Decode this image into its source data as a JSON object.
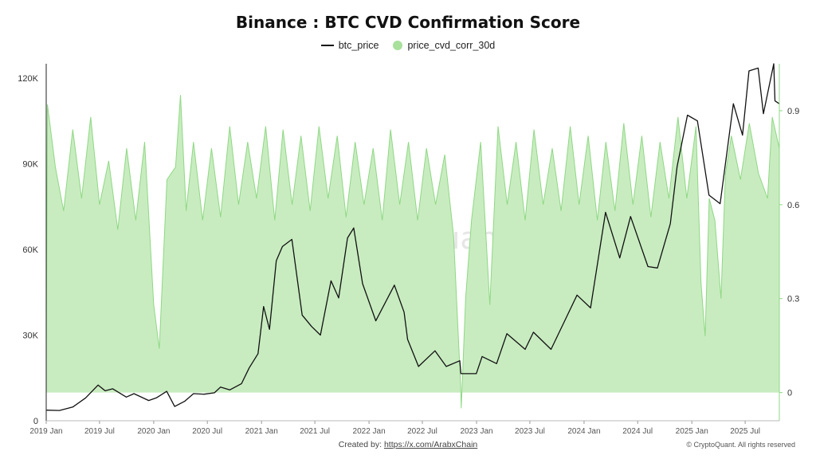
{
  "title": "Binance : BTC CVD Confirmation Score",
  "legend": {
    "series1": "btc_price",
    "series2": "price_cvd_corr_30d"
  },
  "colors": {
    "price_line": "#111111",
    "corr_fill": "#c8ecc0",
    "corr_stroke": "#8fd884",
    "legend_dot": "#a8e09c"
  },
  "watermark": "CryptoQuant",
  "footer": {
    "created_by_label": "Created by:",
    "created_by_link": "https://x.com/ArabxChain",
    "copyright": "© CryptoQuant. All rights reserved"
  },
  "chart_data": {
    "type": "line",
    "title": "Binance : BTC CVD Confirmation Score",
    "x_ticks": [
      "2019 Jan",
      "2019 Jul",
      "2020 Jan",
      "2020 Jul",
      "2021 Jan",
      "2021 Jul",
      "2022 Jan",
      "2022 Jul",
      "2023 Jan",
      "2023 Jul",
      "2024 Jan",
      "2024 Jul",
      "2025 Jan",
      "2025 Jul"
    ],
    "y_left": {
      "ticks": [
        "0",
        "30K",
        "60K",
        "90K",
        "120K"
      ],
      "range": [
        0,
        125000
      ]
    },
    "y_right": {
      "ticks": [
        "0",
        "0.3",
        "0.6",
        "0.9"
      ],
      "range": [
        -0.09,
        1.05
      ]
    },
    "x_range": [
      "2019-01-01",
      "2025-10-25"
    ],
    "series": [
      {
        "name": "btc_price",
        "axis": "left",
        "style": "line",
        "points": [
          [
            "2019-01-01",
            3700
          ],
          [
            "2019-02-15",
            3600
          ],
          [
            "2019-04-01",
            4800
          ],
          [
            "2019-05-15",
            8000
          ],
          [
            "2019-06-26",
            12500
          ],
          [
            "2019-07-20",
            10500
          ],
          [
            "2019-08-15",
            11200
          ],
          [
            "2019-09-30",
            8300
          ],
          [
            "2019-10-26",
            9500
          ],
          [
            "2019-12-15",
            7100
          ],
          [
            "2020-01-10",
            8000
          ],
          [
            "2020-02-14",
            10300
          ],
          [
            "2020-03-12",
            5000
          ],
          [
            "2020-04-15",
            6800
          ],
          [
            "2020-05-15",
            9500
          ],
          [
            "2020-06-20",
            9300
          ],
          [
            "2020-07-25",
            9800
          ],
          [
            "2020-08-15",
            11800
          ],
          [
            "2020-09-15",
            10800
          ],
          [
            "2020-10-25",
            13000
          ],
          [
            "2020-11-20",
            18500
          ],
          [
            "2020-12-20",
            23500
          ],
          [
            "2021-01-08",
            40000
          ],
          [
            "2021-01-28",
            32000
          ],
          [
            "2021-02-20",
            56000
          ],
          [
            "2021-03-13",
            61000
          ],
          [
            "2021-04-14",
            63500
          ],
          [
            "2021-05-19",
            37000
          ],
          [
            "2021-06-20",
            33000
          ],
          [
            "2021-07-20",
            30000
          ],
          [
            "2021-08-25",
            49000
          ],
          [
            "2021-09-20",
            43000
          ],
          [
            "2021-10-20",
            64000
          ],
          [
            "2021-11-10",
            67500
          ],
          [
            "2021-12-10",
            48000
          ],
          [
            "2022-01-24",
            35000
          ],
          [
            "2022-03-28",
            47500
          ],
          [
            "2022-04-30",
            38000
          ],
          [
            "2022-05-12",
            28500
          ],
          [
            "2022-06-18",
            19000
          ],
          [
            "2022-08-13",
            24500
          ],
          [
            "2022-09-20",
            19000
          ],
          [
            "2022-11-05",
            21000
          ],
          [
            "2022-11-09",
            16500
          ],
          [
            "2022-12-31",
            16500
          ],
          [
            "2023-01-20",
            22500
          ],
          [
            "2023-03-10",
            20000
          ],
          [
            "2023-04-14",
            30500
          ],
          [
            "2023-06-15",
            25000
          ],
          [
            "2023-07-13",
            31000
          ],
          [
            "2023-09-11",
            25000
          ],
          [
            "2023-10-25",
            34500
          ],
          [
            "2023-12-08",
            44000
          ],
          [
            "2024-01-23",
            39500
          ],
          [
            "2024-03-14",
            73000
          ],
          [
            "2024-05-01",
            57000
          ],
          [
            "2024-06-07",
            71500
          ],
          [
            "2024-08-05",
            54000
          ],
          [
            "2024-09-06",
            53500
          ],
          [
            "2024-10-20",
            69000
          ],
          [
            "2024-11-12",
            89000
          ],
          [
            "2024-12-17",
            107000
          ],
          [
            "2025-01-20",
            105000
          ],
          [
            "2025-02-28",
            79000
          ],
          [
            "2025-04-07",
            76000
          ],
          [
            "2025-05-22",
            111000
          ],
          [
            "2025-06-22",
            100000
          ],
          [
            "2025-07-14",
            122500
          ],
          [
            "2025-08-14",
            123500
          ],
          [
            "2025-09-01",
            107500
          ],
          [
            "2025-10-06",
            125000
          ],
          [
            "2025-10-10",
            112000
          ],
          [
            "2025-10-25",
            111000
          ]
        ]
      },
      {
        "name": "price_cvd_corr_30d",
        "axis": "right",
        "style": "area",
        "points": [
          [
            "2019-01-01",
            0.1
          ],
          [
            "2019-01-05",
            0.92
          ],
          [
            "2019-02-01",
            0.72
          ],
          [
            "2019-03-01",
            0.58
          ],
          [
            "2019-04-01",
            0.84
          ],
          [
            "2019-05-01",
            0.62
          ],
          [
            "2019-06-01",
            0.88
          ],
          [
            "2019-07-01",
            0.6
          ],
          [
            "2019-08-01",
            0.74
          ],
          [
            "2019-09-01",
            0.52
          ],
          [
            "2019-10-01",
            0.78
          ],
          [
            "2019-11-01",
            0.55
          ],
          [
            "2019-12-01",
            0.8
          ],
          [
            "2020-01-01",
            0.28
          ],
          [
            "2020-01-20",
            0.14
          ],
          [
            "2020-02-15",
            0.68
          ],
          [
            "2020-03-15",
            0.72
          ],
          [
            "2020-04-01",
            0.95
          ],
          [
            "2020-04-20",
            0.58
          ],
          [
            "2020-05-15",
            0.8
          ],
          [
            "2020-06-15",
            0.55
          ],
          [
            "2020-07-15",
            0.78
          ],
          [
            "2020-08-15",
            0.56
          ],
          [
            "2020-09-15",
            0.85
          ],
          [
            "2020-10-15",
            0.6
          ],
          [
            "2020-11-15",
            0.8
          ],
          [
            "2020-12-15",
            0.62
          ],
          [
            "2021-01-15",
            0.85
          ],
          [
            "2021-02-15",
            0.55
          ],
          [
            "2021-03-15",
            0.84
          ],
          [
            "2021-04-15",
            0.6
          ],
          [
            "2021-05-15",
            0.82
          ],
          [
            "2021-06-15",
            0.58
          ],
          [
            "2021-07-15",
            0.85
          ],
          [
            "2021-08-15",
            0.62
          ],
          [
            "2021-09-15",
            0.82
          ],
          [
            "2021-10-15",
            0.56
          ],
          [
            "2021-11-15",
            0.8
          ],
          [
            "2021-12-15",
            0.6
          ],
          [
            "2022-01-15",
            0.78
          ],
          [
            "2022-02-15",
            0.55
          ],
          [
            "2022-03-15",
            0.84
          ],
          [
            "2022-04-15",
            0.6
          ],
          [
            "2022-05-15",
            0.8
          ],
          [
            "2022-06-15",
            0.55
          ],
          [
            "2022-07-15",
            0.78
          ],
          [
            "2022-08-15",
            0.6
          ],
          [
            "2022-09-15",
            0.76
          ],
          [
            "2022-10-15",
            0.5
          ],
          [
            "2022-11-08",
            0.02
          ],
          [
            "2022-11-10",
            -0.05
          ],
          [
            "2022-11-25",
            0.3
          ],
          [
            "2022-12-15",
            0.55
          ],
          [
            "2023-01-15",
            0.8
          ],
          [
            "2023-02-15",
            0.28
          ],
          [
            "2023-03-15",
            0.85
          ],
          [
            "2023-04-15",
            0.6
          ],
          [
            "2023-05-15",
            0.8
          ],
          [
            "2023-06-15",
            0.55
          ],
          [
            "2023-07-15",
            0.84
          ],
          [
            "2023-08-15",
            0.6
          ],
          [
            "2023-09-15",
            0.78
          ],
          [
            "2023-10-15",
            0.58
          ],
          [
            "2023-11-15",
            0.85
          ],
          [
            "2023-12-15",
            0.6
          ],
          [
            "2024-01-15",
            0.82
          ],
          [
            "2024-02-15",
            0.55
          ],
          [
            "2024-03-15",
            0.8
          ],
          [
            "2024-04-15",
            0.58
          ],
          [
            "2024-05-15",
            0.86
          ],
          [
            "2024-06-15",
            0.6
          ],
          [
            "2024-07-15",
            0.82
          ],
          [
            "2024-08-15",
            0.56
          ],
          [
            "2024-09-15",
            0.8
          ],
          [
            "2024-10-15",
            0.62
          ],
          [
            "2024-11-15",
            0.88
          ],
          [
            "2024-12-15",
            0.62
          ],
          [
            "2025-01-15",
            0.85
          ],
          [
            "2025-02-01",
            0.35
          ],
          [
            "2025-02-15",
            0.18
          ],
          [
            "2025-03-01",
            0.62
          ],
          [
            "2025-03-20",
            0.55
          ],
          [
            "2025-04-10",
            0.3
          ],
          [
            "2025-04-25",
            0.7
          ],
          [
            "2025-05-15",
            0.82
          ],
          [
            "2025-06-15",
            0.68
          ],
          [
            "2025-07-15",
            0.86
          ],
          [
            "2025-08-15",
            0.7
          ],
          [
            "2025-09-15",
            0.62
          ],
          [
            "2025-10-01",
            0.88
          ],
          [
            "2025-10-25",
            0.78
          ]
        ]
      }
    ],
    "grid": false,
    "legend_position": "top-center"
  }
}
